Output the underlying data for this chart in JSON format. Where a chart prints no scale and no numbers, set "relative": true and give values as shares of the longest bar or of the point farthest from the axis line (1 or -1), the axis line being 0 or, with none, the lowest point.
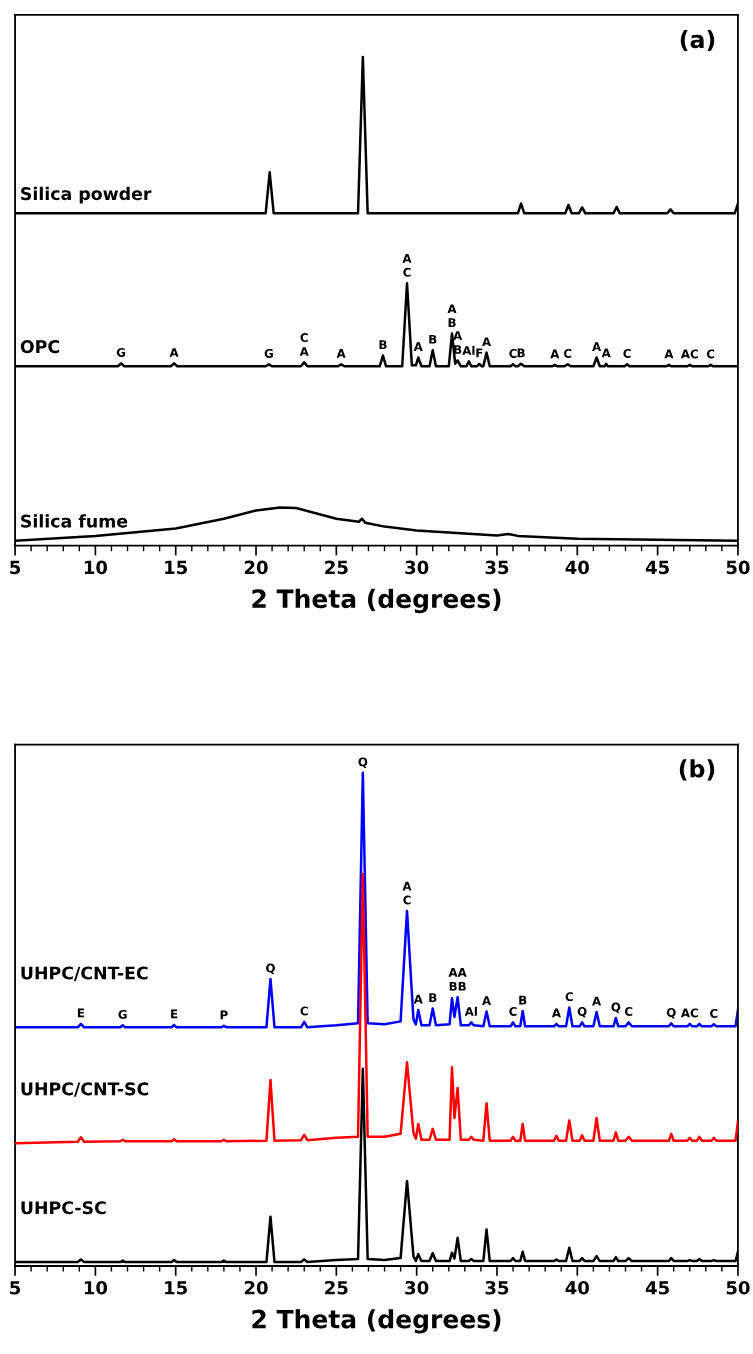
{
  "chart_data": [
    {
      "type": "line",
      "relative": true,
      "xlabel": "2 Theta (degrees)",
      "xlim": [
        5,
        50
      ],
      "xticks": [
        5,
        10,
        15,
        20,
        25,
        30,
        35,
        40,
        45,
        50
      ],
      "tick_labels": "x",
      "series": [
        {
          "name": "Silica powder",
          "color": "#000000",
          "x": [
            5,
            20.6,
            20.85,
            21.1,
            26.35,
            26.65,
            26.95,
            36.3,
            36.5,
            36.7,
            39.25,
            39.45,
            39.65,
            40.1,
            40.3,
            40.5,
            42.25,
            42.45,
            42.65,
            45.6,
            45.8,
            46.0,
            49.8,
            50
          ],
          "values": [
            0.68,
            0.68,
            0.764,
            0.68,
            0.68,
            1,
            0.68,
            0.68,
            0.7,
            0.68,
            0.68,
            0.697,
            0.68,
            0.68,
            0.692,
            0.68,
            0.68,
            0.693,
            0.68,
            0.68,
            0.688,
            0.68,
            0.68,
            0.7
          ]
        },
        {
          "name": "OPC",
          "color": "#000000",
          "x": [
            5,
            11.4,
            11.6,
            11.8,
            14.7,
            14.9,
            15.1,
            20.6,
            20.8,
            21.0,
            22.8,
            23.0,
            23.2,
            25.1,
            25.3,
            25.5,
            27.7,
            27.9,
            28.1,
            29.1,
            29.4,
            29.7,
            29.95,
            30.1,
            30.3,
            30.8,
            31.0,
            31.2,
            32.0,
            32.2,
            32.4,
            32.55,
            32.75,
            33.1,
            33.25,
            33.4,
            33.75,
            33.9,
            34.05,
            34.15,
            34.35,
            34.55,
            35.85,
            36.0,
            36.15,
            36.3,
            36.5,
            36.7,
            38.45,
            38.6,
            38.75,
            39.2,
            39.4,
            39.6,
            41.0,
            41.2,
            41.4,
            41.7,
            41.8,
            41.9,
            42.95,
            43.1,
            43.25,
            45.55,
            45.7,
            45.85,
            46.85,
            47.0,
            47.15,
            48.15,
            48.3,
            48.45,
            50
          ],
          "values": [
            0.367,
            0.367,
            0.373,
            0.367,
            0.367,
            0.373,
            0.367,
            0.367,
            0.371,
            0.367,
            0.367,
            0.375,
            0.367,
            0.367,
            0.371,
            0.367,
            0.367,
            0.389,
            0.367,
            0.367,
            0.537,
            0.369,
            0.369,
            0.385,
            0.367,
            0.367,
            0.4,
            0.367,
            0.367,
            0.434,
            0.372,
            0.379,
            0.367,
            0.367,
            0.377,
            0.367,
            0.367,
            0.372,
            0.367,
            0.367,
            0.395,
            0.367,
            0.367,
            0.371,
            0.367,
            0.367,
            0.372,
            0.367,
            0.367,
            0.37,
            0.367,
            0.367,
            0.371,
            0.367,
            0.367,
            0.385,
            0.367,
            0.367,
            0.372,
            0.367,
            0.367,
            0.371,
            0.367,
            0.367,
            0.37,
            0.367,
            0.367,
            0.37,
            0.367,
            0.367,
            0.37,
            0.367,
            0.367
          ]
        },
        {
          "name": "Silica fume",
          "color": "#000000",
          "x": [
            5,
            10,
            15,
            18,
            20,
            21.5,
            22.5,
            25,
            26.4,
            26.6,
            26.8,
            28,
            30,
            35,
            35.7,
            36.3,
            40,
            45,
            50
          ],
          "values": [
            0.01,
            0.02,
            0.035,
            0.055,
            0.072,
            0.078,
            0.077,
            0.055,
            0.049,
            0.055,
            0.047,
            0.039,
            0.031,
            0.021,
            0.024,
            0.02,
            0.014,
            0.012,
            0.01
          ]
        }
      ],
      "annotations": [
        "(a)",
        {
          "text": "G",
          "x": 11.6,
          "y": 0.373
        },
        {
          "text": "A",
          "x": 14.9,
          "y": 0.373
        },
        {
          "text": "G",
          "x": 20.8,
          "y": 0.371
        },
        {
          "text": "A",
          "x": 23.0,
          "y": 0.375
        },
        {
          "text": "C",
          "x": 23.0,
          "y": 0.375
        },
        {
          "text": "A",
          "x": 25.3,
          "y": 0.371
        },
        {
          "text": "B",
          "x": 27.9,
          "y": 0.389
        },
        {
          "text": "C",
          "x": 29.4,
          "y": 0.537
        },
        {
          "text": "A",
          "x": 29.4,
          "y": 0.537
        },
        {
          "text": "A",
          "x": 30.1,
          "y": 0.385
        },
        {
          "text": "B",
          "x": 31.0,
          "y": 0.4
        },
        {
          "text": "B",
          "x": 32.2,
          "y": 0.434
        },
        {
          "text": "A",
          "x": 32.2,
          "y": 0.434
        },
        {
          "text": "B",
          "x": 32.55,
          "y": 0.379
        },
        {
          "text": "A",
          "x": 32.55,
          "y": 0.379
        },
        {
          "text": "Al",
          "x": 33.25,
          "y": 0.377
        },
        {
          "text": "F",
          "x": 33.9,
          "y": 0.372
        },
        {
          "text": "A",
          "x": 34.35,
          "y": 0.395
        },
        {
          "text": "C",
          "x": 36.0,
          "y": 0.371
        },
        {
          "text": "B",
          "x": 36.5,
          "y": 0.372
        },
        {
          "text": "A",
          "x": 38.6,
          "y": 0.37
        },
        {
          "text": "C",
          "x": 39.4,
          "y": 0.371
        },
        {
          "text": "A",
          "x": 41.2,
          "y": 0.385
        },
        {
          "text": "A",
          "x": 41.8,
          "y": 0.372
        },
        {
          "text": "C",
          "x": 43.1,
          "y": 0.371
        },
        {
          "text": "A",
          "x": 45.7,
          "y": 0.37
        },
        {
          "text": "AC",
          "x": 47.0,
          "y": 0.37
        },
        {
          "text": "C",
          "x": 48.3,
          "y": 0.37
        }
      ]
    },
    {
      "type": "line",
      "relative": true,
      "xlabel": "2 Theta (degrees)",
      "xlim": [
        5,
        50
      ],
      "xticks": [
        5,
        10,
        15,
        20,
        25,
        30,
        35,
        40,
        45,
        50
      ],
      "tick_labels": "x",
      "x": [
        5,
        8.9,
        9.1,
        9.3,
        11.55,
        11.7,
        11.85,
        14.75,
        14.9,
        15.05,
        17.85,
        18.0,
        18.15,
        20.65,
        20.9,
        21.15,
        22.8,
        23.0,
        23.2,
        25.0,
        26.35,
        26.65,
        26.95,
        28.0,
        29.0,
        29.4,
        29.8,
        29.95,
        30.1,
        30.3,
        30.8,
        31.0,
        31.2,
        32.05,
        32.2,
        32.35,
        32.55,
        32.75,
        33.25,
        33.4,
        33.55,
        34.15,
        34.35,
        34.55,
        35.85,
        36.0,
        36.15,
        36.45,
        36.6,
        36.75,
        38.55,
        38.7,
        38.85,
        39.3,
        39.5,
        39.7,
        40.15,
        40.3,
        40.45,
        41.0,
        41.2,
        41.4,
        42.25,
        42.4,
        42.55,
        43.0,
        43.2,
        43.4,
        45.7,
        45.85,
        46.0,
        46.85,
        47.0,
        47.15,
        47.45,
        47.6,
        47.75,
        48.35,
        48.5,
        48.65,
        49.85,
        50
      ],
      "series": [
        {
          "name": "UHPC/CNT-EC",
          "color": "#0000ff",
          "values": [
            0.484,
            0.484,
            0.491,
            0.484,
            0.484,
            0.488,
            0.484,
            0.484,
            0.489,
            0.484,
            0.484,
            0.487,
            0.484,
            0.484,
            0.582,
            0.484,
            0.484,
            0.495,
            0.484,
            0.488,
            0.492,
            1,
            0.492,
            0.49,
            0.496,
            0.72,
            0.5,
            0.49,
            0.519,
            0.488,
            0.488,
            0.522,
            0.488,
            0.49,
            0.543,
            0.505,
            0.545,
            0.488,
            0.488,
            0.494,
            0.488,
            0.486,
            0.516,
            0.486,
            0.486,
            0.494,
            0.486,
            0.486,
            0.517,
            0.486,
            0.486,
            0.491,
            0.486,
            0.486,
            0.524,
            0.486,
            0.486,
            0.494,
            0.486,
            0.486,
            0.515,
            0.486,
            0.486,
            0.503,
            0.486,
            0.486,
            0.494,
            0.486,
            0.486,
            0.492,
            0.486,
            0.486,
            0.491,
            0.486,
            0.486,
            0.491,
            0.486,
            0.486,
            0.49,
            0.486,
            0.486,
            0.519
          ]
        },
        {
          "name": "UHPC/CNT-SC",
          "color": "#ff0000",
          "values": [
            0.249,
            0.252,
            0.261,
            0.252,
            0.253,
            0.256,
            0.253,
            0.253,
            0.257,
            0.253,
            0.253,
            0.256,
            0.253,
            0.254,
            0.377,
            0.254,
            0.255,
            0.266,
            0.255,
            0.26,
            0.262,
            0.795,
            0.262,
            0.262,
            0.268,
            0.413,
            0.27,
            0.258,
            0.288,
            0.256,
            0.256,
            0.278,
            0.256,
            0.256,
            0.403,
            0.3,
            0.361,
            0.256,
            0.256,
            0.262,
            0.256,
            0.254,
            0.33,
            0.254,
            0.254,
            0.262,
            0.254,
            0.254,
            0.288,
            0.254,
            0.254,
            0.264,
            0.254,
            0.254,
            0.295,
            0.254,
            0.254,
            0.265,
            0.254,
            0.254,
            0.3,
            0.254,
            0.254,
            0.271,
            0.254,
            0.254,
            0.262,
            0.254,
            0.254,
            0.268,
            0.254,
            0.254,
            0.26,
            0.254,
            0.254,
            0.262,
            0.254,
            0.254,
            0.26,
            0.254,
            0.254,
            0.293
          ]
        },
        {
          "name": "UHPC-SC",
          "color": "#000000",
          "values": [
            0.008,
            0.008,
            0.013,
            0.008,
            0.008,
            0.011,
            0.008,
            0.008,
            0.012,
            0.008,
            0.008,
            0.011,
            0.008,
            0.008,
            0.1,
            0.008,
            0.008,
            0.013,
            0.008,
            0.012,
            0.014,
            0.4,
            0.014,
            0.012,
            0.016,
            0.172,
            0.02,
            0.01,
            0.024,
            0.01,
            0.01,
            0.026,
            0.01,
            0.01,
            0.027,
            0.015,
            0.057,
            0.01,
            0.01,
            0.014,
            0.01,
            0.01,
            0.074,
            0.01,
            0.01,
            0.016,
            0.01,
            0.01,
            0.029,
            0.01,
            0.01,
            0.013,
            0.01,
            0.01,
            0.037,
            0.01,
            0.01,
            0.016,
            0.01,
            0.01,
            0.02,
            0.01,
            0.01,
            0.018,
            0.01,
            0.01,
            0.016,
            0.01,
            0.01,
            0.016,
            0.01,
            0.01,
            0.012,
            0.01,
            0.01,
            0.014,
            0.01,
            0.01,
            0.012,
            0.01,
            0.01,
            0.029
          ]
        }
      ],
      "annotations": [
        "(b)",
        {
          "text": "Q",
          "x": 26.65,
          "y": 1
        },
        {
          "text": "Q",
          "x": 20.9,
          "y": 0.582
        },
        {
          "text": "C",
          "x": 29.4,
          "y": 0.72
        },
        {
          "text": "A",
          "x": 29.4,
          "y": 0.72
        },
        {
          "text": "BB",
          "x": 32.55,
          "y": 0.545
        },
        {
          "text": "AA",
          "x": 32.55,
          "y": 0.545
        },
        {
          "text": "A",
          "x": 30.1,
          "y": 0.519
        },
        {
          "text": "B",
          "x": 31.0,
          "y": 0.522
        },
        {
          "text": "Al",
          "x": 33.4,
          "y": 0.494
        },
        {
          "text": "A",
          "x": 34.35,
          "y": 0.516
        },
        {
          "text": "C",
          "x": 36.0,
          "y": 0.494
        },
        {
          "text": "B",
          "x": 36.6,
          "y": 0.517
        },
        {
          "text": "A",
          "x": 38.7,
          "y": 0.491
        },
        {
          "text": "C",
          "x": 39.5,
          "y": 0.524
        },
        {
          "text": "Q",
          "x": 40.3,
          "y": 0.494
        },
        {
          "text": "A",
          "x": 41.2,
          "y": 0.515
        },
        {
          "text": "Q",
          "x": 42.4,
          "y": 0.503
        },
        {
          "text": "C",
          "x": 43.2,
          "y": 0.494
        },
        {
          "text": "Q",
          "x": 45.85,
          "y": 0.492
        },
        {
          "text": "AC",
          "x": 47.0,
          "y": 0.491
        },
        {
          "text": "C",
          "x": 48.5,
          "y": 0.49
        },
        {
          "text": "E",
          "x": 9.1,
          "y": 0.491
        },
        {
          "text": "G",
          "x": 11.7,
          "y": 0.488
        },
        {
          "text": "E",
          "x": 14.9,
          "y": 0.489
        },
        {
          "text": "P",
          "x": 18.0,
          "y": 0.487
        },
        {
          "text": "C",
          "x": 23.0,
          "y": 0.495
        }
      ]
    }
  ]
}
